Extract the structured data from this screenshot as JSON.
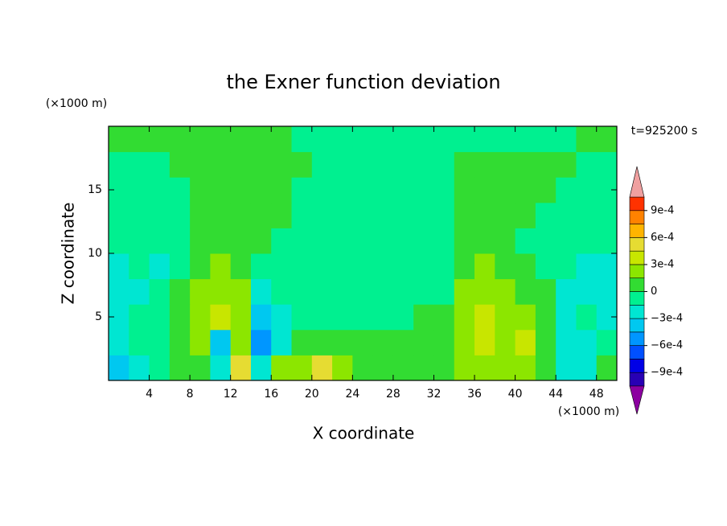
{
  "chart_data": {
    "type": "contour",
    "title": "the Exner function deviation",
    "x_label": "X coordinate",
    "y_label": "Z coordinate",
    "x_unit": "(×1000 m)",
    "y_unit": "(×1000 m)",
    "annotation": "t=925200 s",
    "xlim": [
      0,
      50
    ],
    "ylim": [
      0,
      20
    ],
    "xticks": [
      4,
      8,
      12,
      16,
      20,
      24,
      28,
      32,
      36,
      40,
      44,
      48
    ],
    "yticks": [
      5,
      10,
      15
    ],
    "x": [
      1,
      3,
      5,
      7,
      9,
      11,
      13,
      15,
      17,
      19,
      21,
      23,
      25,
      27,
      29,
      31,
      33,
      35,
      37,
      39,
      41,
      43,
      45,
      47,
      49
    ],
    "y": [
      1,
      3,
      5,
      7,
      9,
      11,
      13,
      15,
      17,
      19
    ],
    "z": [
      [
        -0.00035,
        -0.0002,
        -5e-05,
        7e-05,
        7e-05,
        -0.0002,
        0.0005,
        -0.0002,
        0.0002,
        0.0002,
        0.0005,
        0.0002,
        7e-05,
        7e-05,
        7e-05,
        7e-05,
        7e-05,
        0.0002,
        0.0002,
        0.0002,
        0.0002,
        7e-05,
        -0.0002,
        -0.0002,
        7e-05
      ],
      [
        -0.0002,
        -5e-05,
        -5e-05,
        7e-05,
        0.0002,
        -0.00035,
        0.0002,
        -0.0005,
        -0.0002,
        7e-05,
        7e-05,
        7e-05,
        7e-05,
        7e-05,
        7e-05,
        7e-05,
        7e-05,
        0.0002,
        0.00035,
        0.0002,
        0.00035,
        7e-05,
        -0.0002,
        -0.0002,
        -5e-05
      ],
      [
        -0.0002,
        -5e-05,
        -5e-05,
        7e-05,
        0.0002,
        0.00035,
        0.0002,
        -0.00035,
        -0.0002,
        -5e-05,
        -5e-05,
        -5e-05,
        -5e-05,
        -5e-05,
        -5e-05,
        7e-05,
        7e-05,
        0.0002,
        0.00035,
        0.0002,
        0.0002,
        7e-05,
        -0.0002,
        -5e-05,
        -0.0002
      ],
      [
        -0.0002,
        -0.0002,
        -5e-05,
        7e-05,
        0.0002,
        0.0002,
        0.0002,
        -0.0002,
        -5e-05,
        -5e-05,
        -5e-05,
        -5e-05,
        -5e-05,
        -5e-05,
        -5e-05,
        -5e-05,
        -5e-05,
        0.0002,
        0.0002,
        0.0002,
        7e-05,
        7e-05,
        -0.0002,
        -0.0002,
        -0.0002
      ],
      [
        -0.0002,
        -5e-05,
        -0.0002,
        -5e-05,
        7e-05,
        0.0002,
        7e-05,
        -5e-05,
        -5e-05,
        -5e-05,
        -5e-05,
        -5e-05,
        -5e-05,
        -5e-05,
        -5e-05,
        -5e-05,
        -5e-05,
        7e-05,
        0.0002,
        7e-05,
        7e-05,
        -5e-05,
        -5e-05,
        -0.0002,
        -0.0002
      ],
      [
        -5e-05,
        -5e-05,
        -5e-05,
        -5e-05,
        7e-05,
        7e-05,
        7e-05,
        7e-05,
        -5e-05,
        -5e-05,
        -5e-05,
        -5e-05,
        -5e-05,
        -5e-05,
        -5e-05,
        -5e-05,
        -5e-05,
        7e-05,
        7e-05,
        7e-05,
        -5e-05,
        -5e-05,
        -5e-05,
        -5e-05,
        -5e-05
      ],
      [
        -5e-05,
        -5e-05,
        -5e-05,
        -5e-05,
        7e-05,
        7e-05,
        7e-05,
        7e-05,
        7e-05,
        -5e-05,
        -5e-05,
        -5e-05,
        -5e-05,
        -5e-05,
        -5e-05,
        -5e-05,
        -5e-05,
        7e-05,
        7e-05,
        7e-05,
        7e-05,
        -5e-05,
        -5e-05,
        -5e-05,
        -5e-05
      ],
      [
        -5e-05,
        -5e-05,
        -5e-05,
        -5e-05,
        7e-05,
        7e-05,
        7e-05,
        7e-05,
        7e-05,
        -5e-05,
        -5e-05,
        -5e-05,
        -5e-05,
        -5e-05,
        -5e-05,
        -5e-05,
        -5e-05,
        7e-05,
        7e-05,
        7e-05,
        7e-05,
        7e-05,
        -5e-05,
        -5e-05,
        -5e-05
      ],
      [
        -5e-05,
        -5e-05,
        -5e-05,
        7e-05,
        7e-05,
        7e-05,
        7e-05,
        7e-05,
        7e-05,
        7e-05,
        -5e-05,
        -5e-05,
        -5e-05,
        -5e-05,
        -5e-05,
        -5e-05,
        -5e-05,
        7e-05,
        7e-05,
        7e-05,
        7e-05,
        7e-05,
        7e-05,
        -5e-05,
        -5e-05
      ],
      [
        7e-05,
        7e-05,
        7e-05,
        7e-05,
        7e-05,
        7e-05,
        7e-05,
        7e-05,
        7e-05,
        -5e-05,
        -5e-05,
        -5e-05,
        -5e-05,
        -5e-05,
        -5e-05,
        -5e-05,
        -5e-05,
        -5e-05,
        -5e-05,
        -5e-05,
        -5e-05,
        -5e-05,
        -5e-05,
        7e-05,
        7e-05
      ]
    ],
    "levels": [
      -0.00105,
      -0.0009,
      -0.00075,
      -0.0006,
      -0.00045,
      -0.0003,
      -0.00015,
      0,
      0.00015,
      0.0003,
      0.00045,
      0.0006,
      0.00075,
      0.0009,
      0.00105
    ],
    "colors": [
      "#8c00a0",
      "#2800b4",
      "#0000e6",
      "#0050ff",
      "#0096ff",
      "#00c8f0",
      "#00e6d2",
      "#00f090",
      "#32dc32",
      "#8ce600",
      "#c8e600",
      "#e6dc32",
      "#ffb400",
      "#ff8200",
      "#ff3200",
      "#f0a0a0"
    ],
    "cbar_ticks": [
      {
        "value": 0.0009,
        "label": "9e-4"
      },
      {
        "value": 0.0006,
        "label": "6e-4"
      },
      {
        "value": 0.0003,
        "label": "3e-4"
      },
      0,
      {
        "value": -0.0003,
        "label": "−3e-4"
      },
      {
        "value": -0.0006,
        "label": "−6e-4"
      },
      {
        "value": -0.0009,
        "label": "−9e-4"
      }
    ]
  }
}
